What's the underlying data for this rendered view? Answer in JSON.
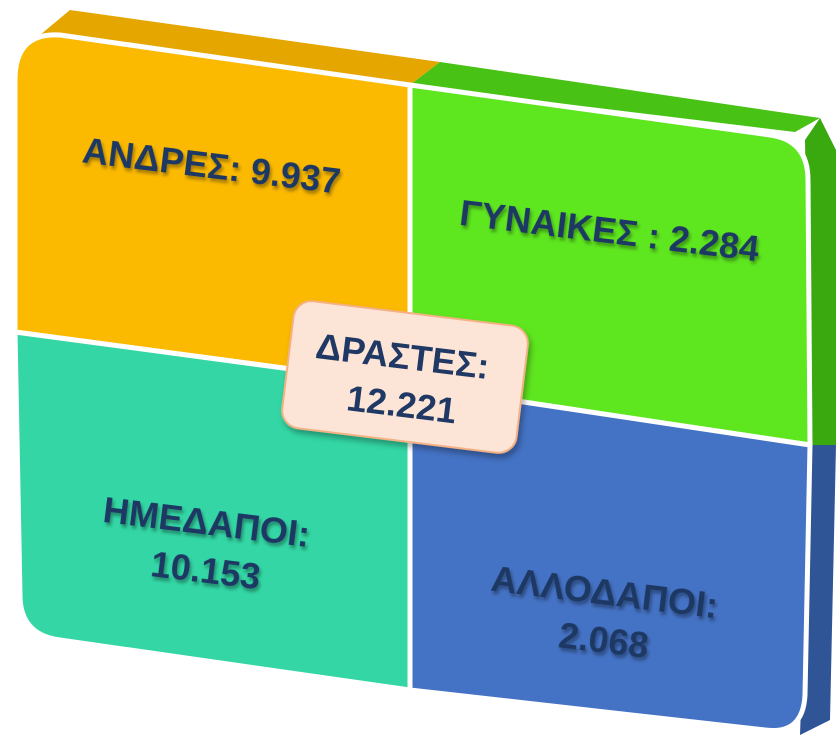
{
  "center": {
    "lines": [
      "ΔΡΑΣΤΕΣ:",
      "12.221"
    ]
  },
  "quadrants": [
    {
      "lines": [
        "ΑΝΔΡΕΣ: 9.937"
      ]
    },
    {
      "lines": [
        "ΓΥΝΑΙΚΕΣ : 2.284"
      ]
    },
    {
      "lines": [
        "ΗΜΕΔΑΠΟΙ:",
        "10.153"
      ]
    },
    {
      "lines": [
        "ΑΛΛΟΔΑΠΟΙ:",
        "2.068"
      ]
    }
  ]
}
